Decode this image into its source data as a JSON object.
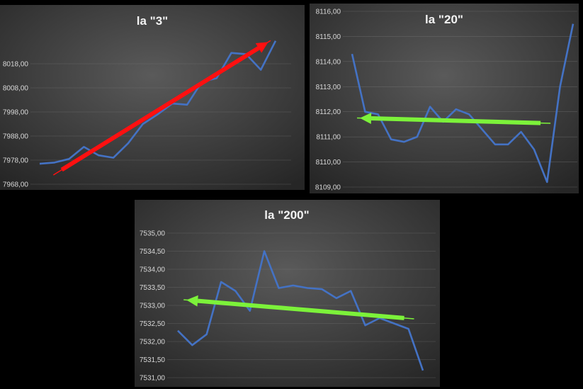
{
  "chart_data": [
    {
      "type": "line",
      "title": "la \"3\"",
      "xlabel": "",
      "ylabel": "",
      "ylim": [
        7968,
        8028
      ],
      "yticks": [
        "7968,00",
        "7978,00",
        "7988,00",
        "7998,00",
        "8008,00",
        "8018,00"
      ],
      "ytick_values": [
        7968,
        7978,
        7988,
        7998,
        8008,
        8018
      ],
      "grid": true,
      "series": [
        {
          "color": "#4472c4",
          "values": [
            7976.5,
            7977,
            7978.5,
            7983.5,
            7980,
            7979,
            7985,
            7993,
            7997,
            8001.5,
            8001,
            8010.5,
            8012,
            8022.5,
            8022,
            8015.5,
            8027.5
          ]
        }
      ],
      "trend": {
        "color": "#ff1010",
        "direction": "up",
        "start": {
          "x": 1.5,
          "y": 7974
        },
        "end": {
          "x": 15.5,
          "y": 8027
        }
      }
    },
    {
      "type": "line",
      "title": "la \"20\"",
      "xlabel": "",
      "ylabel": "",
      "ylim": [
        8109,
        8116
      ],
      "yticks": [
        "8109,00",
        "8110,00",
        "8111,00",
        "8112,00",
        "8113,00",
        "8114,00",
        "8115,00",
        "8116,00"
      ],
      "ytick_values": [
        8109,
        8110,
        8111,
        8112,
        8113,
        8114,
        8115,
        8116
      ],
      "grid": true,
      "series": [
        {
          "color": "#4472c4",
          "values": [
            8114.3,
            8112.0,
            8111.9,
            8110.9,
            8110.8,
            8111.0,
            8112.2,
            8111.6,
            8112.1,
            8111.9,
            8111.3,
            8110.7,
            8110.7,
            8111.2,
            8110.5,
            8109.2,
            8113.0,
            8115.5
          ]
        }
      ],
      "trend": {
        "color": "#7cf23a",
        "direction": "down",
        "start": {
          "x": 14.5,
          "y": 8111.55
        },
        "end": {
          "x": 0.6,
          "y": 8111.75
        }
      }
    },
    {
      "type": "line",
      "title": "la \"200\"",
      "xlabel": "",
      "ylabel": "",
      "ylim": [
        7531,
        7535
      ],
      "yticks": [
        "7531,00",
        "7531,50",
        "7532,00",
        "7532,50",
        "7533,00",
        "7533,50",
        "7534,00",
        "7534,50",
        "7535,00"
      ],
      "ytick_values": [
        7531,
        7531.5,
        7532,
        7532.5,
        7533,
        7533.5,
        7534,
        7534.5,
        7535
      ],
      "grid": true,
      "series": [
        {
          "color": "#4472c4",
          "values": [
            7532.3,
            7531.9,
            7532.2,
            7533.65,
            7533.4,
            7532.85,
            7534.5,
            7533.48,
            7533.55,
            7533.48,
            7533.45,
            7533.2,
            7533.4,
            7532.45,
            7532.65,
            7532.5,
            7532.35,
            7531.2
          ]
        }
      ],
      "trend": {
        "color": "#7cf23a",
        "direction": "down",
        "start": {
          "x": 15.7,
          "y": 7532.65
        },
        "end": {
          "x": 0.6,
          "y": 7533.15
        }
      }
    }
  ]
}
